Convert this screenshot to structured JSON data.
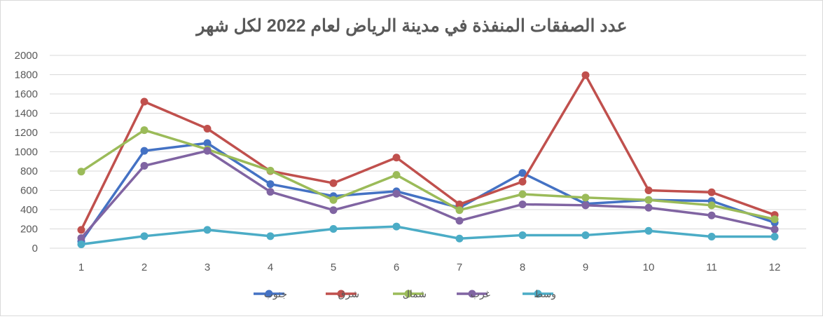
{
  "chart_data": {
    "type": "line",
    "title": "عدد الصفقات المنفذة في مدينة الرياض لعام 2022 لكل شهر",
    "xlabel": "",
    "ylabel": "",
    "categories": [
      "1",
      "2",
      "3",
      "4",
      "5",
      "6",
      "7",
      "8",
      "9",
      "10",
      "11",
      "12"
    ],
    "ylim": [
      0,
      2000
    ],
    "yticks": [
      0,
      200,
      400,
      600,
      800,
      1000,
      1200,
      1400,
      1600,
      1800,
      2000
    ],
    "grid": true,
    "legend_position": "bottom",
    "series": [
      {
        "name": "جنوب",
        "color": "#4472C4",
        "values": [
          70,
          1010,
          1090,
          665,
          540,
          590,
          420,
          780,
          460,
          500,
          490,
          265
        ]
      },
      {
        "name": "شرق",
        "color": "#C0504D",
        "values": [
          190,
          1520,
          1240,
          800,
          675,
          940,
          455,
          690,
          1795,
          600,
          580,
          345
        ]
      },
      {
        "name": "شمال",
        "color": "#9BBB59",
        "values": [
          795,
          1225,
          1025,
          805,
          500,
          760,
          395,
          560,
          525,
          500,
          445,
          300
        ]
      },
      {
        "name": "غرب",
        "color": "#8064A2",
        "values": [
          105,
          855,
          1010,
          585,
          395,
          565,
          285,
          455,
          445,
          420,
          340,
          195
        ]
      },
      {
        "name": "وسط",
        "color": "#4BACC6",
        "values": [
          40,
          125,
          190,
          125,
          200,
          225,
          100,
          135,
          135,
          180,
          120,
          120
        ]
      }
    ]
  }
}
